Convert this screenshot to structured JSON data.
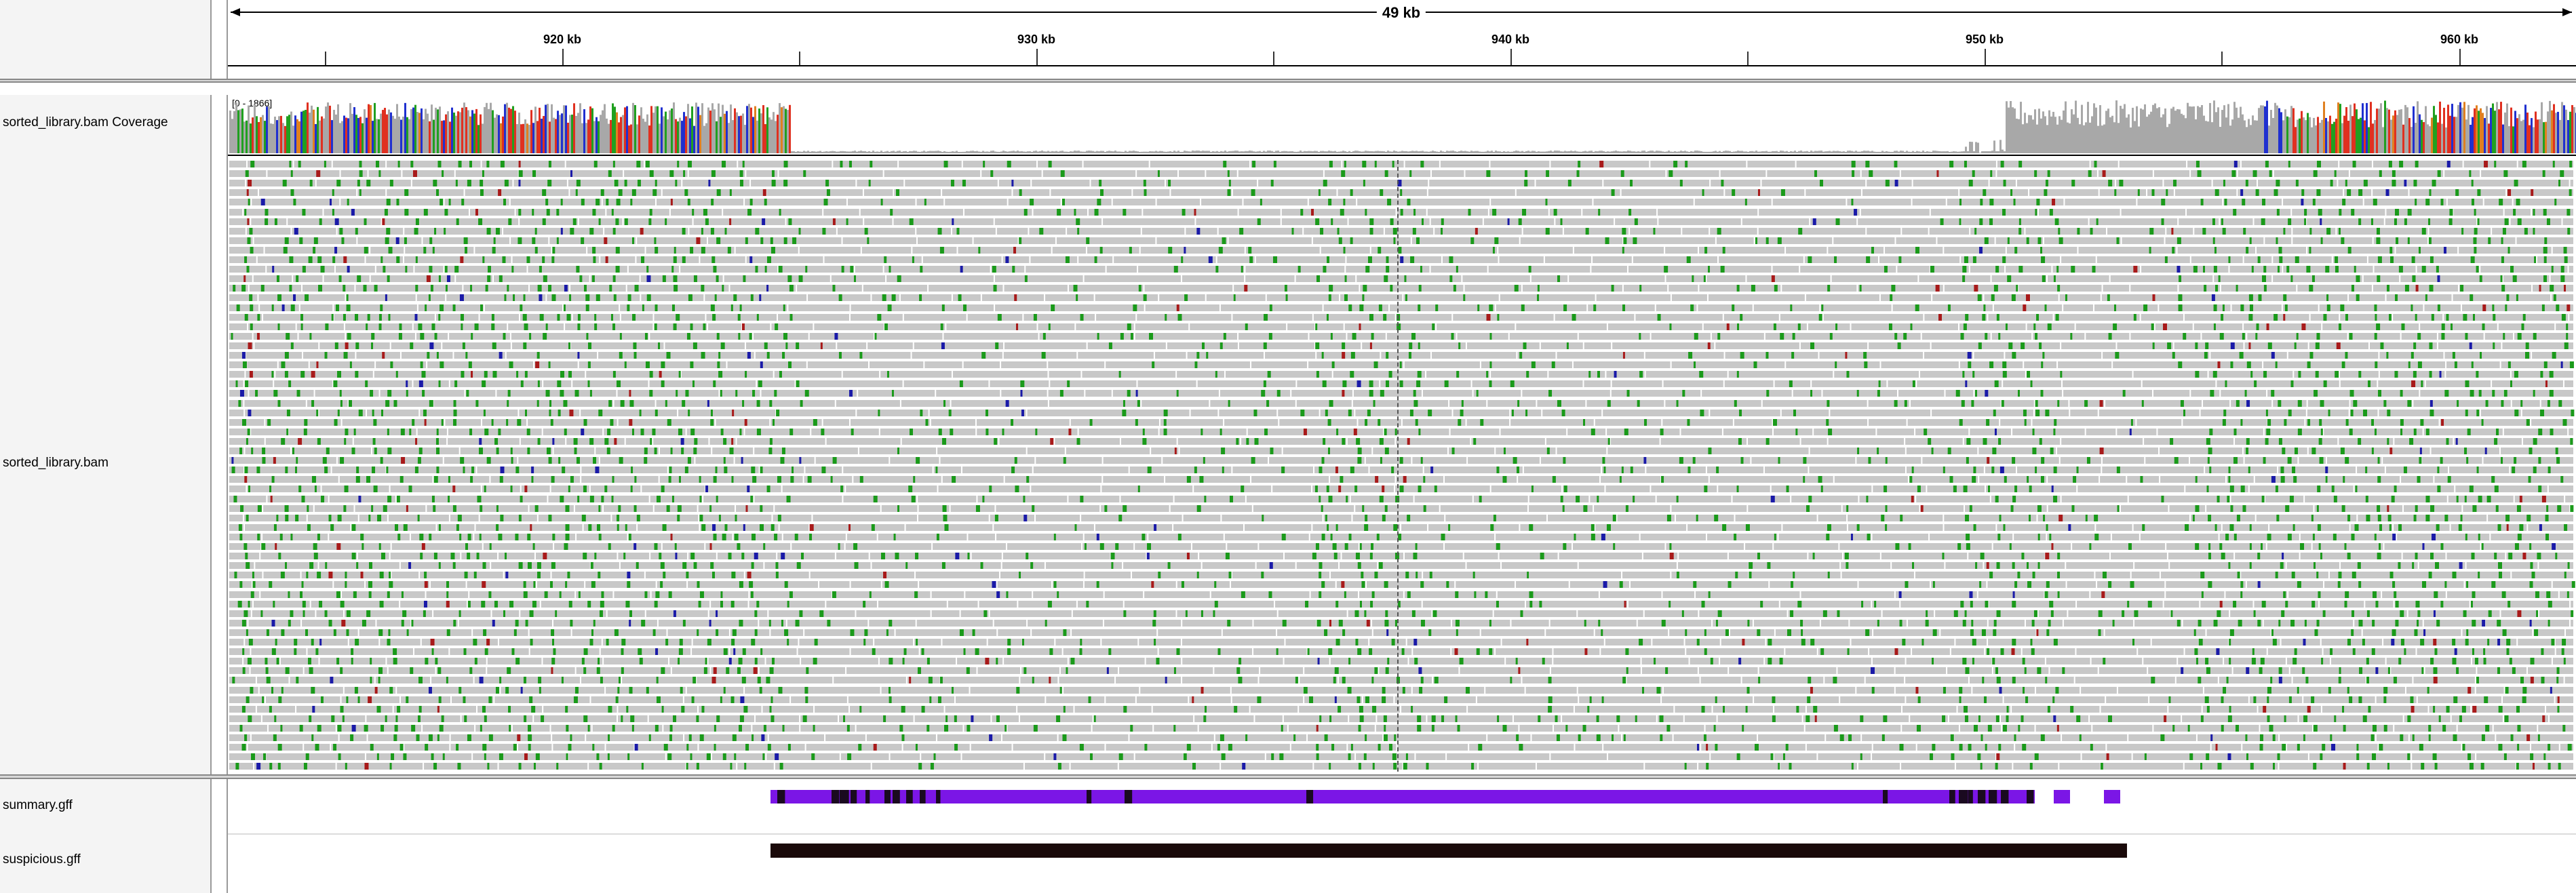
{
  "ruler": {
    "span_label": "49 kb",
    "ticks": [
      {
        "label": "920 kb"
      },
      {
        "label": "930 kb"
      },
      {
        "label": "940 kb"
      },
      {
        "label": "950 kb"
      },
      {
        "label": "960 kb"
      }
    ]
  },
  "tracks": {
    "coverage": {
      "name": "sorted_library.bam Coverage",
      "range_label": "[0 - 1866]"
    },
    "alignments": {
      "name": "sorted_library.bam"
    },
    "summary": {
      "name": "summary.gff"
    },
    "suspicious": {
      "name": "suspicious.gff"
    }
  },
  "colors": {
    "read_grey": "#c8c8c8",
    "mismatch_green": "#1a9a1a",
    "mismatch_blue": "#1a1aa8",
    "mismatch_red": "#a81a1a",
    "coverage_grey": "#a8a8a8",
    "summary_purple": "#7b16e6",
    "suspicious_black": "#1a0a0a"
  }
}
